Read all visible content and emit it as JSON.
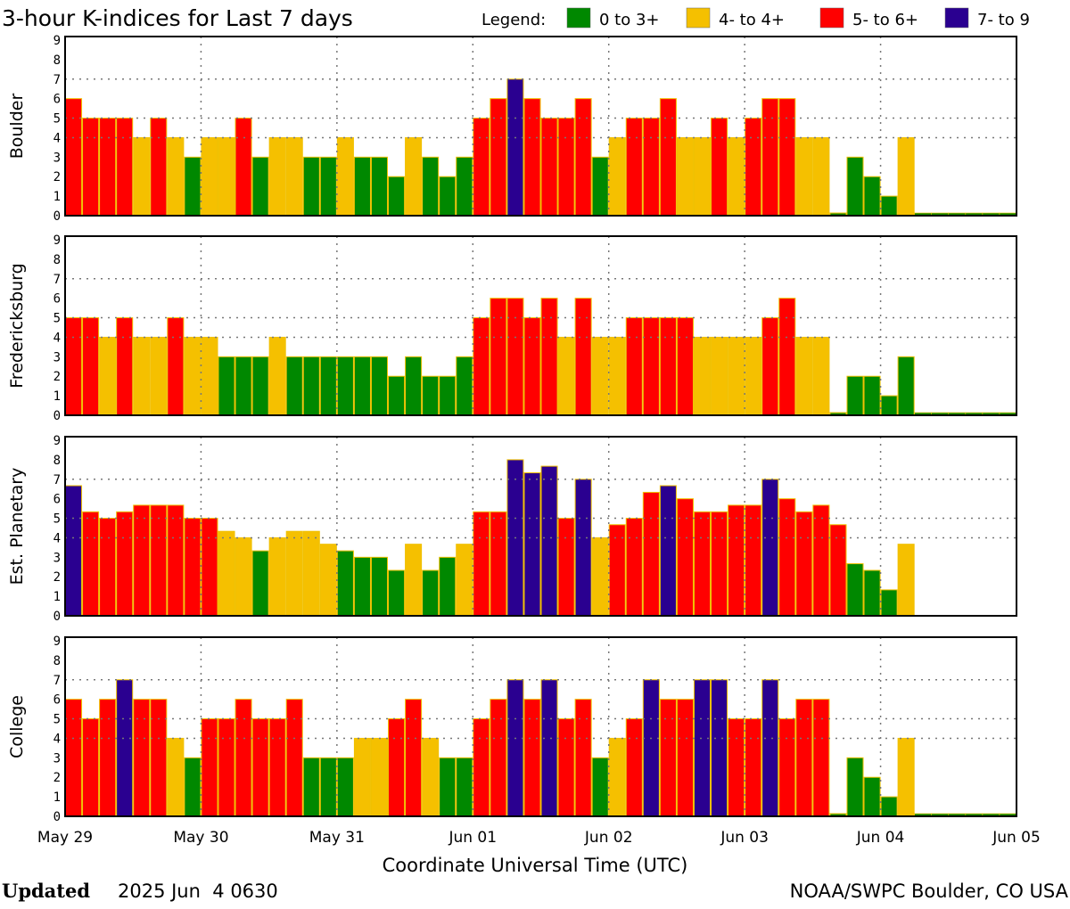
{
  "chart_data": {
    "type": "bar",
    "title": "3-hour K-indices for Last 7 days",
    "legend": {
      "label": "Legend:",
      "placement": "top-right",
      "entries": [
        {
          "label": "0 to 3+",
          "color": "#008800"
        },
        {
          "label": "4- to 4+",
          "color": "#f5c000"
        },
        {
          "label": "5- to 6+",
          "color": "#ff0000"
        },
        {
          "label": "7- to 9",
          "color": "#2a0090"
        }
      ]
    },
    "bar_outline_color": "#f0c000",
    "xlabel": "Coordinate Universal Time (UTC)",
    "x_tick_labels": [
      "May 29",
      "May 30",
      "May 31",
      "Jun 01",
      "Jun 02",
      "Jun 03",
      "Jun 04",
      "Jun 05"
    ],
    "y_tick_labels": [
      "0",
      "1",
      "2",
      "3",
      "4",
      "5",
      "6",
      "7",
      "8",
      "9"
    ],
    "ylim": [
      0,
      9
    ],
    "grid": {
      "horizontal_dotted_at": [
        4,
        5,
        7
      ],
      "vertical_dotted_at_days": true
    },
    "bars_per_day": 8,
    "series": [
      {
        "name": "Boulder",
        "values": [
          6,
          5,
          5,
          5,
          4,
          5,
          4,
          3,
          4,
          4,
          5,
          3,
          4,
          4,
          3,
          3,
          4,
          3,
          3,
          2,
          4,
          3,
          2,
          3,
          5,
          6,
          7,
          6,
          5,
          5,
          6,
          3,
          4,
          5,
          5,
          6,
          4,
          4,
          5,
          4,
          5,
          6,
          6,
          4,
          4,
          0,
          3,
          2,
          1,
          4,
          null,
          null,
          null,
          null,
          null,
          null
        ]
      },
      {
        "name": "Fredericksburg",
        "values": [
          5,
          5,
          4,
          5,
          4,
          4,
          5,
          4,
          4,
          3,
          3,
          3,
          4,
          3,
          3,
          3,
          3,
          3,
          3,
          2,
          3,
          2,
          2,
          3,
          5,
          6,
          6,
          5,
          6,
          4,
          6,
          4,
          4,
          5,
          5,
          5,
          5,
          4,
          4,
          4,
          4,
          5,
          6,
          4,
          4,
          0,
          2,
          2,
          1,
          3,
          null,
          null,
          null,
          null,
          null,
          null
        ]
      },
      {
        "name": "Est. Planetary",
        "values": [
          6.67,
          5.33,
          5,
          5.33,
          5.67,
          5.67,
          5.67,
          5,
          5,
          4.33,
          4,
          3.33,
          4,
          4.33,
          4.33,
          3.67,
          3.33,
          3,
          3,
          2.33,
          3.67,
          2.33,
          3,
          3.67,
          5.33,
          5.33,
          8,
          7.33,
          7.67,
          5,
          7,
          4,
          4.67,
          5,
          6.33,
          6.67,
          6,
          5.33,
          5.33,
          5.67,
          5.67,
          7,
          6,
          5.33,
          5.67,
          4.67,
          2.67,
          2.33,
          1.33,
          3.67,
          null,
          null,
          null,
          null,
          null,
          null
        ]
      },
      {
        "name": "College",
        "values": [
          6,
          5,
          6,
          7,
          6,
          6,
          4,
          3,
          5,
          5,
          6,
          5,
          5,
          6,
          3,
          3,
          3,
          4,
          4,
          5,
          6,
          4,
          3,
          3,
          5,
          6,
          7,
          6,
          7,
          5,
          6,
          3,
          4,
          5,
          7,
          6,
          6,
          7,
          7,
          5,
          5,
          7,
          5,
          6,
          6,
          0,
          3,
          2,
          1,
          4,
          null,
          null,
          null,
          null,
          null,
          null
        ]
      }
    ]
  },
  "footer": {
    "updated_label": "Updated",
    "updated_value": "2025 Jun  4 0630",
    "source": "NOAA/SWPC Boulder, CO USA"
  }
}
